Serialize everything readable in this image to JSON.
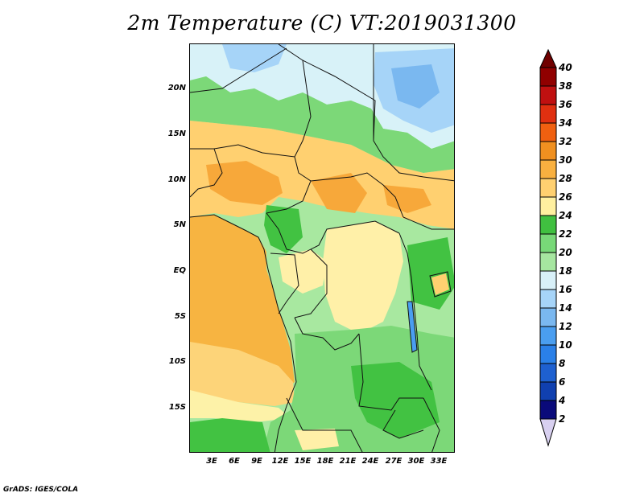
{
  "title": "2m Temperature (C) VT:2019031300",
  "footer": "GrADS: IGES/COLA",
  "lat_labels": [
    "20N",
    "15N",
    "10N",
    "5N",
    "EQ",
    "5S",
    "10S",
    "15S"
  ],
  "lon_labels": [
    "3E",
    "6E",
    "9E",
    "12E",
    "15E",
    "18E",
    "21E",
    "24E",
    "27E",
    "30E",
    "33E"
  ],
  "colorbar": {
    "levels": [
      "2",
      "4",
      "6",
      "8",
      "10",
      "12",
      "14",
      "16",
      "18",
      "20",
      "22",
      "24",
      "26",
      "28",
      "30",
      "32",
      "34",
      "36",
      "38",
      "40"
    ],
    "colors": [
      "#d8d0f0",
      "#0a0a7a",
      "#1040b0",
      "#1e60d0",
      "#2a80e8",
      "#4a9ef0",
      "#7ab8f0",
      "#a6d4f8",
      "#d8f0f8",
      "#a6e6a0",
      "#78d878",
      "#40c040",
      "#fff0a0",
      "#ffd070",
      "#f8b040",
      "#f09020",
      "#f06010",
      "#e03010",
      "#c01010",
      "#900000",
      "#700000"
    ]
  },
  "map": {
    "domain_lon": [
      0,
      35
    ],
    "domain_lat": [
      -18.5,
      24.5
    ],
    "colors": {
      "ocean_warm": "#f7b441",
      "ocean_mid": "#fdd479",
      "ocean_cool": "#fdf2a8",
      "green_dark": "#42c242",
      "green_mid": "#7cd878",
      "green_light": "#a8e8a0",
      "warm_pale": "#fff0a8",
      "warm_mid": "#ffd070",
      "warm_orange": "#f7a83a",
      "cool_pale": "#d8f2f8",
      "cool_mid": "#a6d4f8",
      "cool_blue": "#7ab8f0",
      "border": "#111111"
    }
  }
}
